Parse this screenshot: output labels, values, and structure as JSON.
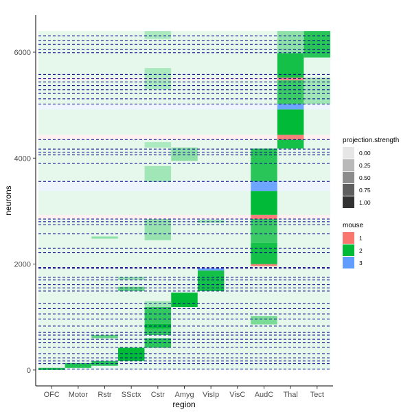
{
  "chart_data": {
    "type": "heatmap",
    "xlabel": "region",
    "ylabel": "neurons",
    "categories": [
      "OFC",
      "Motor",
      "Rstr",
      "SSctx",
      "Cstr",
      "Amyg",
      "VisIp",
      "VisC",
      "AudC",
      "Thal",
      "Tect"
    ],
    "ylim": [
      -300,
      6700
    ],
    "yticks": [
      0,
      2000,
      4000,
      6000
    ],
    "grid": false,
    "colors": {
      "mouse_1": "#F8766D",
      "mouse_2": "#00BA38",
      "mouse_3": "#619CFF",
      "boundary_line": "#00008B"
    },
    "mouse_bands": [
      {
        "mouse": "2",
        "y0": 0,
        "y1": 1920
      },
      {
        "mouse": "1",
        "y0": 1920,
        "y1": 1935
      },
      {
        "mouse": "2",
        "y0": 1935,
        "y1": 2850
      },
      {
        "mouse": "1",
        "y0": 2850,
        "y1": 2930
      },
      {
        "mouse": "2",
        "y0": 2930,
        "y1": 3380
      },
      {
        "mouse": "3",
        "y0": 3380,
        "y1": 3560
      },
      {
        "mouse": "2",
        "y0": 3560,
        "y1": 4350
      },
      {
        "mouse": "1",
        "y0": 4350,
        "y1": 4440
      },
      {
        "mouse": "2",
        "y0": 4440,
        "y1": 4920
      },
      {
        "mouse": "3",
        "y0": 4920,
        "y1": 5020
      },
      {
        "mouse": "2",
        "y0": 5020,
        "y1": 5470
      },
      {
        "mouse": "1",
        "y0": 5470,
        "y1": 5520
      },
      {
        "mouse": "2",
        "y0": 5520,
        "y1": 6400
      }
    ],
    "blocks": [
      {
        "region": "OFC",
        "y0": 0,
        "y1": 40,
        "strength": 0.85,
        "mouse": "2"
      },
      {
        "region": "Motor",
        "y0": 40,
        "y1": 130,
        "strength": 0.85,
        "mouse": "2"
      },
      {
        "region": "Rstr",
        "y0": 80,
        "y1": 170,
        "strength": 0.8,
        "mouse": "2"
      },
      {
        "region": "Rstr",
        "y0": 600,
        "y1": 660,
        "strength": 0.5,
        "mouse": "2"
      },
      {
        "region": "Rstr",
        "y0": 2480,
        "y1": 2520,
        "strength": 0.3,
        "mouse": "2"
      },
      {
        "region": "SSctx",
        "y0": 170,
        "y1": 420,
        "strength": 1.0,
        "mouse": "2"
      },
      {
        "region": "SSctx",
        "y0": 1490,
        "y1": 1570,
        "strength": 0.5,
        "mouse": "2"
      },
      {
        "region": "SSctx",
        "y0": 1700,
        "y1": 1760,
        "strength": 0.25,
        "mouse": "2"
      },
      {
        "region": "Cstr",
        "y0": 420,
        "y1": 600,
        "strength": 0.8,
        "mouse": "2"
      },
      {
        "region": "Cstr",
        "y0": 660,
        "y1": 780,
        "strength": 0.75,
        "mouse": "2"
      },
      {
        "region": "Cstr",
        "y0": 780,
        "y1": 870,
        "strength": 1.0,
        "mouse": "2"
      },
      {
        "region": "Cstr",
        "y0": 870,
        "y1": 1190,
        "strength": 0.75,
        "mouse": "2"
      },
      {
        "region": "Cstr",
        "y0": 1190,
        "y1": 1300,
        "strength": 0.2,
        "mouse": "2"
      },
      {
        "region": "Cstr",
        "y0": 2450,
        "y1": 2850,
        "strength": 0.25,
        "mouse": "2"
      },
      {
        "region": "Cstr",
        "y0": 3550,
        "y1": 3850,
        "strength": 0.2,
        "mouse": "2"
      },
      {
        "region": "Cstr",
        "y0": 4200,
        "y1": 4300,
        "strength": 0.15,
        "mouse": "2"
      },
      {
        "region": "Cstr",
        "y0": 5300,
        "y1": 5700,
        "strength": 0.15,
        "mouse": "2"
      },
      {
        "region": "Cstr",
        "y0": 6250,
        "y1": 6400,
        "strength": 0.15,
        "mouse": "2"
      },
      {
        "region": "Amyg",
        "y0": 1190,
        "y1": 1460,
        "strength": 1.0,
        "mouse": "2"
      },
      {
        "region": "Amyg",
        "y0": 3950,
        "y1": 4200,
        "strength": 0.3,
        "mouse": "2"
      },
      {
        "region": "VisIp",
        "y0": 1490,
        "y1": 1880,
        "strength": 0.9,
        "mouse": "2"
      },
      {
        "region": "VisIp",
        "y0": 1880,
        "y1": 1920,
        "strength": 0.9,
        "mouse": "3"
      },
      {
        "region": "VisIp",
        "y0": 2780,
        "y1": 2830,
        "strength": 0.25,
        "mouse": "2"
      },
      {
        "region": "AudC",
        "y0": 860,
        "y1": 1020,
        "strength": 0.4,
        "mouse": "2"
      },
      {
        "region": "AudC",
        "y0": 1960,
        "y1": 2000,
        "strength": 0.9,
        "mouse": "1"
      },
      {
        "region": "AudC",
        "y0": 2000,
        "y1": 2400,
        "strength": 0.9,
        "mouse": "2"
      },
      {
        "region": "AudC",
        "y0": 2400,
        "y1": 2850,
        "strength": 0.7,
        "mouse": "2"
      },
      {
        "region": "AudC",
        "y0": 2850,
        "y1": 2930,
        "strength": 0.9,
        "mouse": "1"
      },
      {
        "region": "AudC",
        "y0": 2930,
        "y1": 3380,
        "strength": 1.0,
        "mouse": "2"
      },
      {
        "region": "AudC",
        "y0": 3380,
        "y1": 3560,
        "strength": 0.9,
        "mouse": "3"
      },
      {
        "region": "AudC",
        "y0": 3560,
        "y1": 4180,
        "strength": 0.8,
        "mouse": "2"
      },
      {
        "region": "Thal",
        "y0": 4180,
        "y1": 4350,
        "strength": 0.9,
        "mouse": "2"
      },
      {
        "region": "Thal",
        "y0": 4350,
        "y1": 4440,
        "strength": 0.9,
        "mouse": "1"
      },
      {
        "region": "Thal",
        "y0": 4440,
        "y1": 4920,
        "strength": 1.0,
        "mouse": "2"
      },
      {
        "region": "Thal",
        "y0": 4920,
        "y1": 5020,
        "strength": 0.9,
        "mouse": "3"
      },
      {
        "region": "Thal",
        "y0": 5020,
        "y1": 5470,
        "strength": 0.7,
        "mouse": "2"
      },
      {
        "region": "Thal",
        "y0": 5470,
        "y1": 5520,
        "strength": 0.8,
        "mouse": "1"
      },
      {
        "region": "Thal",
        "y0": 5520,
        "y1": 5980,
        "strength": 0.9,
        "mouse": "2"
      },
      {
        "region": "Thal",
        "y0": 5980,
        "y1": 6400,
        "strength": 0.3,
        "mouse": "2"
      },
      {
        "region": "Tect",
        "y0": 5020,
        "y1": 5520,
        "strength": 0.2,
        "mouse": "2"
      },
      {
        "region": "Tect",
        "y0": 5900,
        "y1": 6400,
        "strength": 0.8,
        "mouse": "2"
      }
    ],
    "boundaries": [
      20,
      120,
      170,
      230,
      310,
      430,
      520,
      580,
      660,
      710,
      830,
      960,
      1060,
      1160,
      1260,
      1490,
      1550,
      1610,
      1700,
      1750,
      1920,
      1935,
      2220,
      2300,
      2570,
      2740,
      2800,
      2850,
      3560,
      3900,
      4060,
      4110,
      4170,
      4350,
      5020,
      5120,
      5220,
      5290,
      5370,
      5440,
      5500,
      5580,
      5990,
      6050,
      6150,
      6220,
      6310
    ],
    "legends": {
      "strength": {
        "title": "projection.strength",
        "items": [
          {
            "label": "0.00",
            "value": 0.0
          },
          {
            "label": "0.25",
            "value": 0.25
          },
          {
            "label": "0.50",
            "value": 0.5
          },
          {
            "label": "0.75",
            "value": 0.75
          },
          {
            "label": "1.00",
            "value": 1.0
          }
        ]
      },
      "mouse": {
        "title": "mouse",
        "items": [
          {
            "label": "1",
            "color": "#F8766D"
          },
          {
            "label": "2",
            "color": "#00BA38"
          },
          {
            "label": "3",
            "color": "#619CFF"
          }
        ]
      }
    }
  }
}
